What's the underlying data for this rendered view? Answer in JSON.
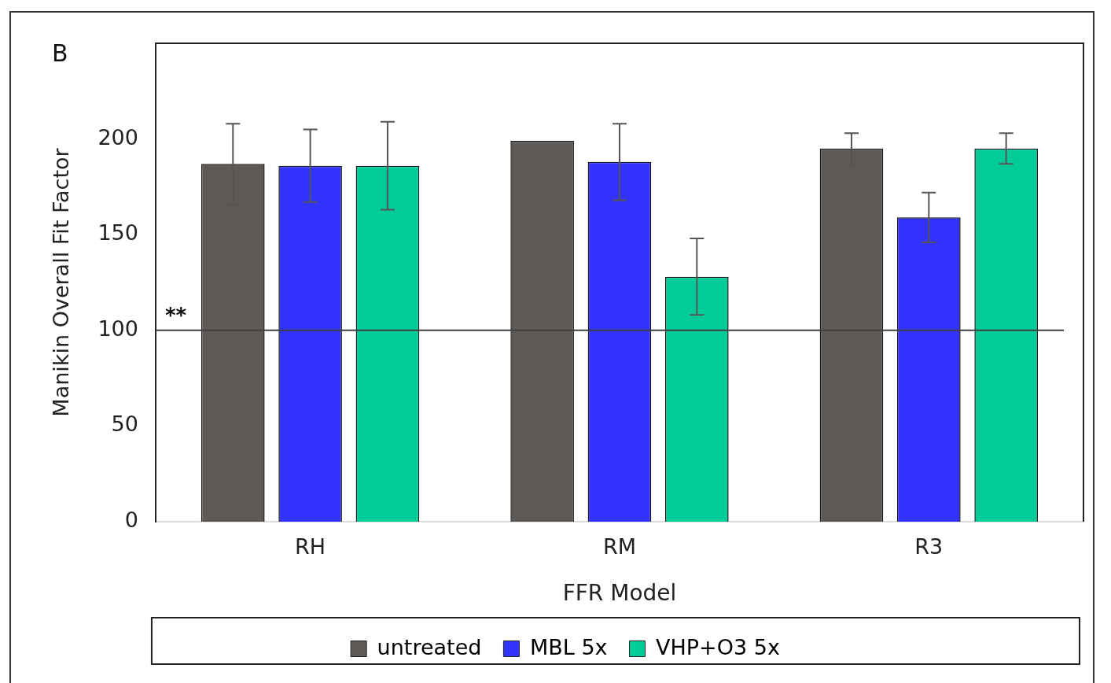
{
  "chart_data": {
    "type": "bar",
    "title": "B",
    "xlabel": "FFR Model",
    "ylabel": "Manikin Overall Fit Factor",
    "categories": [
      "RH",
      "RM",
      "R3"
    ],
    "series": [
      {
        "name": "untreated",
        "color": "#5d5956",
        "values": [
          187,
          199,
          195
        ],
        "errors": [
          21,
          null,
          8
        ]
      },
      {
        "name": "MBL 5x",
        "color": "#3333ff",
        "values": [
          186,
          188,
          159
        ],
        "errors": [
          19,
          20,
          13
        ]
      },
      {
        "name": "VHP+O3 5x",
        "color": "#00cc99",
        "values": [
          186,
          128,
          195
        ],
        "errors": [
          23,
          20,
          8
        ]
      }
    ],
    "ylim": [
      0,
      250
    ],
    "yticks": [
      0,
      50,
      100,
      150,
      200
    ],
    "grid": false,
    "legend": "bottom",
    "ref_lines": [
      {
        "axis": "y",
        "value": 100,
        "label": "**",
        "color": "#404040"
      }
    ]
  }
}
